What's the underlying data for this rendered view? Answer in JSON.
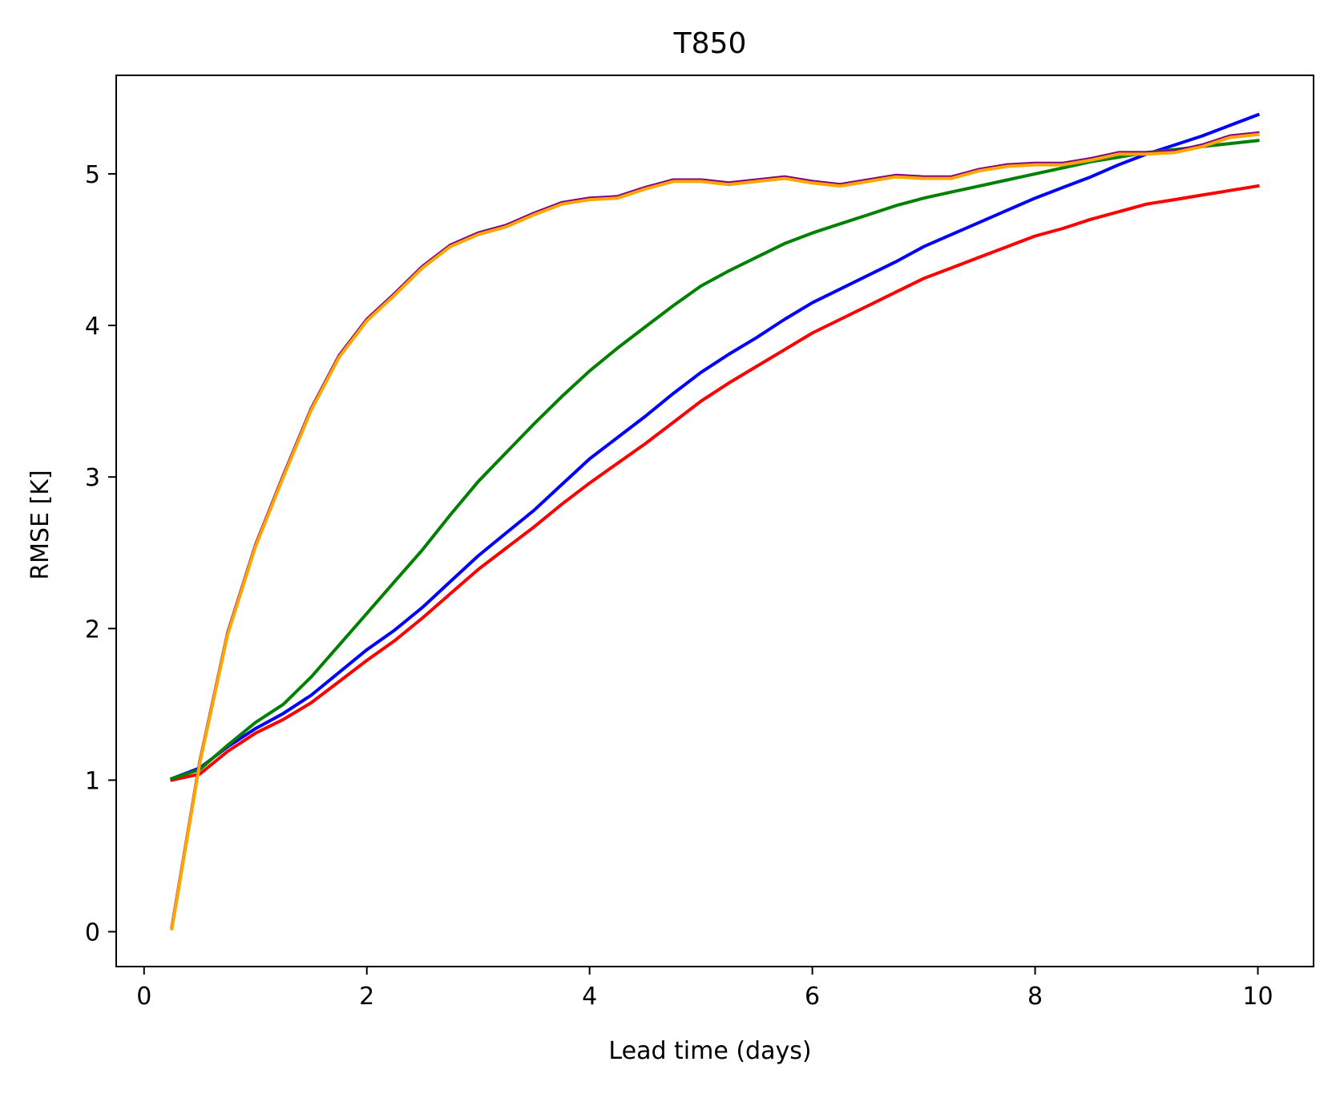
{
  "chart_data": {
    "type": "line",
    "title": "T850",
    "xlabel": "Lead time (days)",
    "ylabel": "RMSE [K]",
    "xlim": [
      -0.25,
      10.5
    ],
    "ylim": [
      -0.23,
      5.65
    ],
    "xticks": [
      0,
      2,
      4,
      6,
      8,
      10
    ],
    "yticks": [
      0,
      1,
      2,
      3,
      4,
      5
    ],
    "grid": false,
    "legend": "none",
    "x": [
      0.25,
      0.5,
      0.75,
      1.0,
      1.25,
      1.5,
      1.75,
      2.0,
      2.25,
      2.5,
      2.75,
      3.0,
      3.25,
      3.5,
      3.75,
      4.0,
      4.25,
      4.5,
      4.75,
      5.0,
      5.25,
      5.5,
      5.75,
      6.0,
      6.25,
      6.5,
      6.75,
      7.0,
      7.25,
      7.5,
      7.75,
      8.0,
      8.25,
      8.5,
      8.75,
      9.0,
      9.25,
      9.5,
      9.75,
      10.0
    ],
    "series": [
      {
        "color": "#ff0000",
        "values": [
          1.0,
          1.04,
          1.19,
          1.31,
          1.4,
          1.51,
          1.65,
          1.79,
          1.92,
          2.07,
          2.23,
          2.39,
          2.53,
          2.67,
          2.82,
          2.96,
          3.09,
          3.22,
          3.36,
          3.5,
          3.62,
          3.73,
          3.84,
          3.95,
          4.04,
          4.13,
          4.22,
          4.31,
          4.38,
          4.45,
          4.52,
          4.59,
          4.64,
          4.7,
          4.75,
          4.8,
          4.83,
          4.86,
          4.89,
          4.92
        ]
      },
      {
        "color": "#0000ff",
        "values": [
          1.01,
          1.08,
          1.22,
          1.34,
          1.44,
          1.56,
          1.71,
          1.86,
          1.99,
          2.14,
          2.31,
          2.48,
          2.63,
          2.78,
          2.95,
          3.12,
          3.26,
          3.4,
          3.55,
          3.69,
          3.81,
          3.92,
          4.04,
          4.15,
          4.24,
          4.33,
          4.42,
          4.52,
          4.6,
          4.68,
          4.76,
          4.84,
          4.91,
          4.98,
          5.06,
          5.13,
          5.19,
          5.25,
          5.32,
          5.39
        ]
      },
      {
        "color": "#008000",
        "values": [
          1.01,
          1.07,
          1.23,
          1.38,
          1.5,
          1.68,
          1.89,
          2.1,
          2.31,
          2.52,
          2.75,
          2.97,
          3.16,
          3.35,
          3.53,
          3.7,
          3.85,
          3.99,
          4.13,
          4.26,
          4.36,
          4.45,
          4.54,
          4.61,
          4.67,
          4.73,
          4.79,
          4.84,
          4.88,
          4.92,
          4.96,
          5.0,
          5.04,
          5.08,
          5.11,
          5.14,
          5.16,
          5.18,
          5.2,
          5.22
        ]
      },
      {
        "color": "#800080",
        "values": [
          0.03,
          1.12,
          1.97,
          2.55,
          3.01,
          3.45,
          3.8,
          4.04,
          4.21,
          4.39,
          4.53,
          4.61,
          4.66,
          4.74,
          4.81,
          4.84,
          4.85,
          4.91,
          4.96,
          4.96,
          4.94,
          4.96,
          4.98,
          4.95,
          4.93,
          4.96,
          4.99,
          4.98,
          4.98,
          5.03,
          5.06,
          5.07,
          5.07,
          5.1,
          5.14,
          5.14,
          5.15,
          5.19,
          5.25,
          5.27
        ]
      },
      {
        "color": "#ffa500",
        "values": [
          0.02,
          1.11,
          1.96,
          2.54,
          3.0,
          3.44,
          3.79,
          4.03,
          4.2,
          4.38,
          4.52,
          4.6,
          4.65,
          4.73,
          4.8,
          4.83,
          4.84,
          4.9,
          4.95,
          4.95,
          4.93,
          4.95,
          4.97,
          4.94,
          4.92,
          4.95,
          4.98,
          4.97,
          4.97,
          5.02,
          5.05,
          5.06,
          5.06,
          5.09,
          5.13,
          5.13,
          5.14,
          5.18,
          5.24,
          5.26
        ]
      }
    ]
  }
}
